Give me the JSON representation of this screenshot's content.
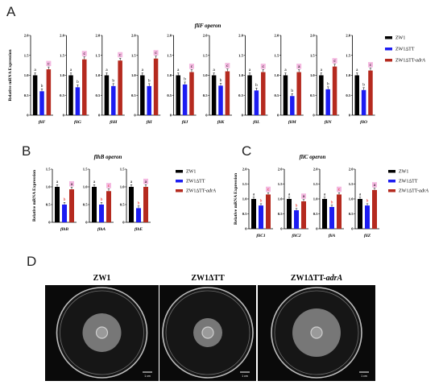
{
  "colors": {
    "wt": "#000000",
    "tt": "#1c1cf2",
    "comp": "#b52a1f",
    "sig_c_bg": "#f4b8e0",
    "sig_b": "#e0201c"
  },
  "labels": {
    "A": "A",
    "B": "B",
    "C": "C",
    "D": "D"
  },
  "legend_names": [
    "ZW1",
    "ZW1ΔTT",
    "ZW1ΔTT-adrA"
  ],
  "plates": {
    "titles": [
      "ZW1",
      "ZW1ΔTT",
      "ZW1ΔTT-adrA"
    ],
    "scale_label": "1 cm"
  },
  "chart_data": [
    {
      "panel": "A",
      "type": "bar",
      "title": "fliF operon",
      "ylabel": "Relative mRNA Expression",
      "ylim": [
        0,
        2.0
      ],
      "yticks": [
        0,
        0.5,
        1.0,
        1.5,
        2.0
      ],
      "categories": [
        "fliF",
        "fliG",
        "fliH",
        "fliI",
        "fliJ",
        "fliK",
        "fliL",
        "fliM",
        "fliN",
        "fliO"
      ],
      "series": [
        {
          "name": "ZW1",
          "values": [
            1.0,
            1.0,
            1.0,
            1.0,
            1.0,
            1.0,
            1.0,
            1.0,
            1.0,
            1.0
          ],
          "letters": [
            "a",
            "a",
            "a",
            "a",
            "a",
            "a",
            "a",
            "a",
            "a",
            "a"
          ]
        },
        {
          "name": "ZW1ΔTT",
          "values": [
            0.6,
            0.7,
            0.73,
            0.73,
            0.77,
            0.74,
            0.62,
            0.48,
            0.65,
            0.63
          ],
          "letters": [
            "b",
            "b",
            "b",
            "b",
            "b",
            "b",
            "b",
            "b",
            "b",
            "b"
          ]
        },
        {
          "name": "ZW1ΔTT-adrA",
          "values": [
            1.15,
            1.4,
            1.37,
            1.42,
            1.08,
            1.1,
            1.08,
            1.08,
            1.22,
            1.12
          ],
          "letters": [
            "c",
            "c",
            "c",
            "c",
            "c",
            "c",
            "c",
            "a",
            "c",
            "c"
          ]
        }
      ]
    },
    {
      "panel": "B",
      "type": "bar",
      "title": "flhB operon",
      "ylabel": "Relative mRNA Expression",
      "ylim": [
        0,
        1.5
      ],
      "yticks": [
        0,
        0.5,
        1.0,
        1.5
      ],
      "categories": [
        "flhB",
        "flhA",
        "flhE"
      ],
      "series": [
        {
          "name": "ZW1",
          "values": [
            1.0,
            1.0,
            1.0
          ],
          "letters": [
            "a",
            "a",
            "a"
          ]
        },
        {
          "name": "ZW1ΔTT",
          "values": [
            0.5,
            0.5,
            0.4
          ],
          "letters": [
            "b",
            "b",
            "b"
          ]
        },
        {
          "name": "ZW1ΔTT-adrA",
          "values": [
            0.93,
            0.88,
            1.0
          ],
          "letters": [
            "a",
            "c",
            "a"
          ]
        }
      ]
    },
    {
      "panel": "C",
      "type": "bar",
      "title": "fliC operon",
      "ylabel": "Relative mRNA Expression",
      "ylim": [
        0,
        2.0
      ],
      "yticks": [
        0,
        0.5,
        1.0,
        1.5,
        2.0
      ],
      "categories": [
        "fliC1",
        "fliC2",
        "fliA",
        "fliZ"
      ],
      "series": [
        {
          "name": "ZW1",
          "values": [
            1.0,
            1.0,
            1.0,
            1.0
          ],
          "letters": [
            "a",
            "a",
            "a",
            "a"
          ]
        },
        {
          "name": "ZW1ΔTT",
          "values": [
            0.78,
            0.62,
            0.73,
            0.78
          ],
          "letters": [
            "b",
            "b",
            "b",
            "b"
          ]
        },
        {
          "name": "ZW1ΔTT-adrA",
          "values": [
            1.15,
            0.92,
            1.15,
            1.3
          ],
          "letters": [
            "c",
            "a",
            "c",
            "a"
          ]
        }
      ]
    }
  ]
}
